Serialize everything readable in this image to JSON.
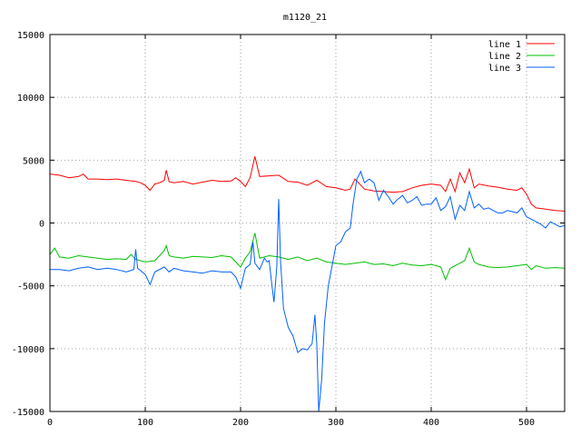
{
  "chart_data": {
    "type": "line",
    "title": "m1120_21",
    "xlabel": "",
    "ylabel": "",
    "xlim": [
      0,
      540
    ],
    "ylim": [
      -15000,
      15000
    ],
    "xticks": [
      0,
      100,
      200,
      300,
      400,
      500
    ],
    "yticks": [
      -15000,
      -10000,
      -5000,
      0,
      5000,
      10000,
      15000
    ],
    "grid": true,
    "legend_position": "top-right",
    "series": [
      {
        "name": "line 1",
        "color": "#ff0000",
        "points": [
          [
            0,
            3900
          ],
          [
            10,
            3800
          ],
          [
            20,
            3600
          ],
          [
            30,
            3700
          ],
          [
            35,
            3900
          ],
          [
            40,
            3500
          ],
          [
            50,
            3500
          ],
          [
            60,
            3450
          ],
          [
            70,
            3500
          ],
          [
            80,
            3400
          ],
          [
            90,
            3300
          ],
          [
            95,
            3200
          ],
          [
            100,
            3000
          ],
          [
            105,
            2600
          ],
          [
            110,
            3100
          ],
          [
            115,
            3200
          ],
          [
            120,
            3400
          ],
          [
            122,
            4200
          ],
          [
            125,
            3300
          ],
          [
            130,
            3200
          ],
          [
            140,
            3300
          ],
          [
            150,
            3100
          ],
          [
            160,
            3250
          ],
          [
            170,
            3400
          ],
          [
            180,
            3300
          ],
          [
            190,
            3350
          ],
          [
            195,
            3600
          ],
          [
            200,
            3300
          ],
          [
            205,
            2900
          ],
          [
            210,
            3600
          ],
          [
            215,
            5300
          ],
          [
            220,
            3700
          ],
          [
            230,
            3750
          ],
          [
            240,
            3800
          ],
          [
            250,
            3300
          ],
          [
            260,
            3250
          ],
          [
            270,
            3000
          ],
          [
            280,
            3400
          ],
          [
            290,
            2900
          ],
          [
            300,
            2800
          ],
          [
            310,
            2600
          ],
          [
            315,
            2700
          ],
          [
            320,
            3500
          ],
          [
            330,
            2700
          ],
          [
            340,
            2550
          ],
          [
            350,
            2500
          ],
          [
            360,
            2450
          ],
          [
            370,
            2500
          ],
          [
            380,
            2800
          ],
          [
            390,
            3000
          ],
          [
            400,
            3100
          ],
          [
            410,
            3000
          ],
          [
            415,
            2500
          ],
          [
            420,
            3500
          ],
          [
            425,
            2500
          ],
          [
            430,
            4000
          ],
          [
            435,
            3200
          ],
          [
            440,
            4300
          ],
          [
            445,
            2800
          ],
          [
            450,
            3100
          ],
          [
            460,
            2950
          ],
          [
            470,
            2850
          ],
          [
            480,
            2700
          ],
          [
            490,
            2600
          ],
          [
            495,
            2800
          ],
          [
            500,
            2300
          ],
          [
            505,
            1500
          ],
          [
            510,
            1200
          ],
          [
            520,
            1100
          ],
          [
            530,
            1000
          ],
          [
            540,
            950
          ]
        ]
      },
      {
        "name": "line 2",
        "color": "#00c000",
        "points": [
          [
            0,
            -2500
          ],
          [
            5,
            -2000
          ],
          [
            10,
            -2700
          ],
          [
            20,
            -2800
          ],
          [
            30,
            -2600
          ],
          [
            40,
            -2700
          ],
          [
            50,
            -2800
          ],
          [
            60,
            -2900
          ],
          [
            70,
            -2850
          ],
          [
            80,
            -2900
          ],
          [
            85,
            -2500
          ],
          [
            90,
            -2900
          ],
          [
            95,
            -3000
          ],
          [
            100,
            -3100
          ],
          [
            110,
            -3000
          ],
          [
            115,
            -2600
          ],
          [
            120,
            -2200
          ],
          [
            122,
            -1800
          ],
          [
            125,
            -2600
          ],
          [
            130,
            -2700
          ],
          [
            140,
            -2800
          ],
          [
            150,
            -2650
          ],
          [
            160,
            -2700
          ],
          [
            170,
            -2750
          ],
          [
            180,
            -2600
          ],
          [
            190,
            -2700
          ],
          [
            200,
            -3500
          ],
          [
            205,
            -2800
          ],
          [
            210,
            -2300
          ],
          [
            215,
            -800
          ],
          [
            220,
            -2800
          ],
          [
            230,
            -2600
          ],
          [
            240,
            -2700
          ],
          [
            250,
            -2900
          ],
          [
            260,
            -2700
          ],
          [
            270,
            -3000
          ],
          [
            280,
            -2800
          ],
          [
            290,
            -3100
          ],
          [
            300,
            -3200
          ],
          [
            310,
            -3300
          ],
          [
            320,
            -3200
          ],
          [
            330,
            -3100
          ],
          [
            340,
            -3300
          ],
          [
            350,
            -3250
          ],
          [
            360,
            -3400
          ],
          [
            370,
            -3200
          ],
          [
            380,
            -3350
          ],
          [
            390,
            -3400
          ],
          [
            400,
            -3300
          ],
          [
            410,
            -3500
          ],
          [
            415,
            -4500
          ],
          [
            420,
            -3600
          ],
          [
            425,
            -3400
          ],
          [
            430,
            -3200
          ],
          [
            435,
            -3000
          ],
          [
            440,
            -2000
          ],
          [
            445,
            -3100
          ],
          [
            450,
            -3300
          ],
          [
            460,
            -3500
          ],
          [
            470,
            -3550
          ],
          [
            480,
            -3500
          ],
          [
            490,
            -3400
          ],
          [
            500,
            -3300
          ],
          [
            505,
            -3700
          ],
          [
            510,
            -3400
          ],
          [
            520,
            -3600
          ],
          [
            530,
            -3550
          ],
          [
            540,
            -3600
          ]
        ]
      },
      {
        "name": "line 3",
        "color": "#0060ff",
        "points": [
          [
            0,
            -3700
          ],
          [
            10,
            -3700
          ],
          [
            20,
            -3800
          ],
          [
            30,
            -3600
          ],
          [
            40,
            -3500
          ],
          [
            50,
            -3700
          ],
          [
            60,
            -3600
          ],
          [
            70,
            -3700
          ],
          [
            80,
            -3900
          ],
          [
            88,
            -3700
          ],
          [
            90,
            -2100
          ],
          [
            92,
            -3600
          ],
          [
            100,
            -4100
          ],
          [
            105,
            -4900
          ],
          [
            110,
            -3900
          ],
          [
            120,
            -3500
          ],
          [
            125,
            -3900
          ],
          [
            130,
            -3600
          ],
          [
            140,
            -3800
          ],
          [
            150,
            -3900
          ],
          [
            160,
            -4000
          ],
          [
            170,
            -3800
          ],
          [
            180,
            -3900
          ],
          [
            190,
            -3900
          ],
          [
            195,
            -4300
          ],
          [
            200,
            -5200
          ],
          [
            205,
            -3600
          ],
          [
            210,
            -3300
          ],
          [
            213,
            -1500
          ],
          [
            215,
            -3200
          ],
          [
            220,
            -3700
          ],
          [
            225,
            -2800
          ],
          [
            228,
            -3100
          ],
          [
            230,
            -3000
          ],
          [
            233,
            -5000
          ],
          [
            235,
            -6300
          ],
          [
            238,
            -3500
          ],
          [
            240,
            1900
          ],
          [
            242,
            -3100
          ],
          [
            245,
            -6800
          ],
          [
            250,
            -8300
          ],
          [
            255,
            -9000
          ],
          [
            260,
            -10300
          ],
          [
            265,
            -10000
          ],
          [
            270,
            -10100
          ],
          [
            275,
            -9600
          ],
          [
            278,
            -7300
          ],
          [
            280,
            -9700
          ],
          [
            282,
            -15000
          ],
          [
            285,
            -12500
          ],
          [
            288,
            -8000
          ],
          [
            292,
            -5000
          ],
          [
            295,
            -3800
          ],
          [
            300,
            -1800
          ],
          [
            305,
            -1500
          ],
          [
            310,
            -700
          ],
          [
            315,
            -400
          ],
          [
            318,
            1500
          ],
          [
            322,
            3500
          ],
          [
            326,
            4100
          ],
          [
            330,
            3200
          ],
          [
            335,
            3500
          ],
          [
            340,
            3200
          ],
          [
            345,
            1800
          ],
          [
            350,
            2600
          ],
          [
            355,
            2100
          ],
          [
            360,
            1500
          ],
          [
            365,
            1900
          ],
          [
            370,
            2200
          ],
          [
            375,
            1600
          ],
          [
            380,
            1800
          ],
          [
            385,
            2100
          ],
          [
            390,
            1400
          ],
          [
            395,
            1500
          ],
          [
            400,
            1500
          ],
          [
            405,
            2000
          ],
          [
            410,
            1000
          ],
          [
            415,
            1300
          ],
          [
            420,
            2100
          ],
          [
            425,
            300
          ],
          [
            430,
            1400
          ],
          [
            435,
            1000
          ],
          [
            440,
            2500
          ],
          [
            445,
            1200
          ],
          [
            450,
            1500
          ],
          [
            455,
            1100
          ],
          [
            460,
            1200
          ],
          [
            465,
            1000
          ],
          [
            470,
            800
          ],
          [
            475,
            800
          ],
          [
            480,
            1000
          ],
          [
            485,
            900
          ],
          [
            490,
            800
          ],
          [
            495,
            1200
          ],
          [
            500,
            500
          ],
          [
            505,
            300
          ],
          [
            510,
            100
          ],
          [
            515,
            -100
          ],
          [
            520,
            -400
          ],
          [
            525,
            100
          ],
          [
            530,
            -100
          ],
          [
            535,
            -300
          ],
          [
            540,
            -200
          ]
        ]
      }
    ]
  }
}
